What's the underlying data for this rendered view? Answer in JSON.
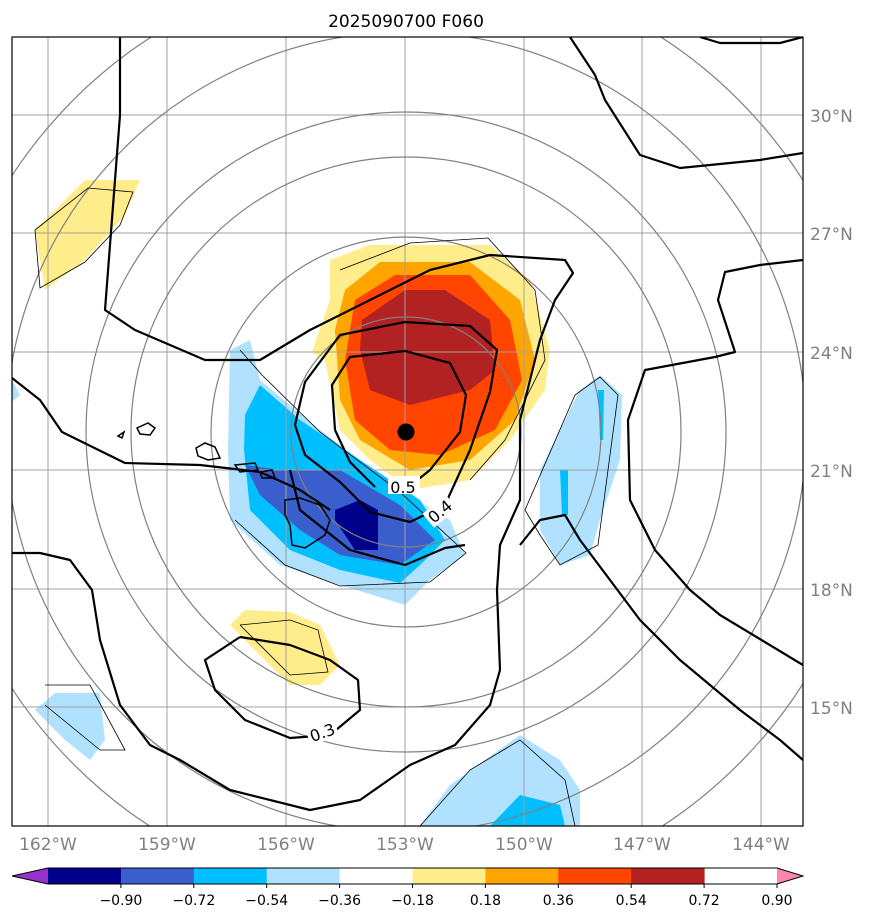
{
  "title": "2025090700 F060",
  "map": {
    "lon_labels": [
      "162°W",
      "159°W",
      "156°W",
      "153°W",
      "150°W",
      "147°W",
      "144°W"
    ],
    "lat_labels": [
      "30°N",
      "27°N",
      "24°N",
      "21°N",
      "18°N",
      "15°N"
    ],
    "contour_labels": [
      "0.5",
      "0.4",
      "0.3"
    ],
    "center_marker": "storm-center-dot"
  },
  "colorbar": {
    "ticks": [
      "−0.90",
      "−0.72",
      "−0.54",
      "−0.36",
      "−0.18",
      "0.18",
      "0.36",
      "0.54",
      "0.72",
      "0.90"
    ],
    "colors": [
      "#9932cc",
      "#00008b",
      "#3a5fcd",
      "#00bfff",
      "#b0e2ff",
      "#ffffff",
      "#ffec8b",
      "#ffa500",
      "#ff4500",
      "#b22222",
      "#ff86a8"
    ]
  }
}
